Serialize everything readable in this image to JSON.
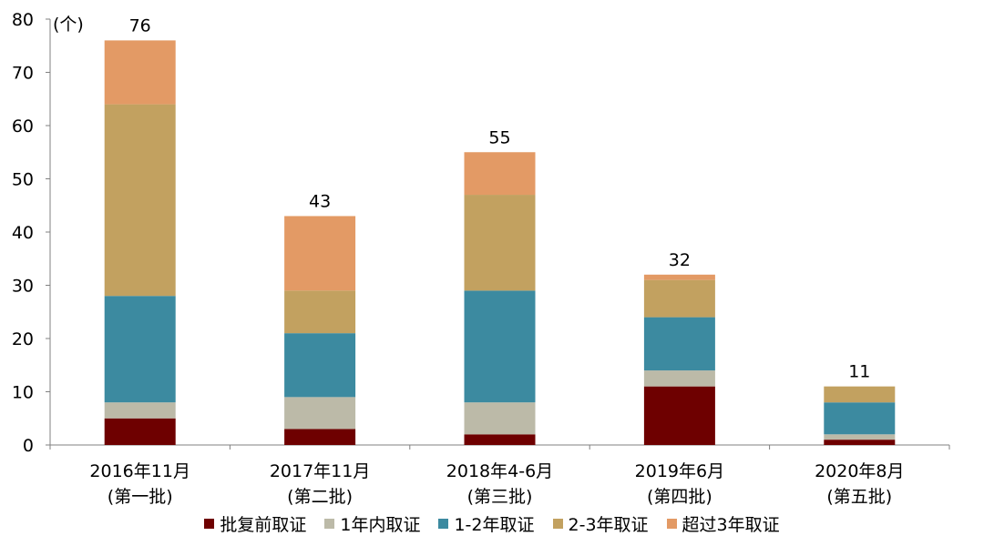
{
  "chart_data": {
    "type": "bar",
    "stacked": true,
    "unit_label": "(个)",
    "ylim": [
      0,
      80
    ],
    "yticks": [
      0,
      10,
      20,
      30,
      40,
      50,
      60,
      70,
      80
    ],
    "categories": [
      [
        "2016年11月",
        "(第一批)"
      ],
      [
        "2017年11月",
        "(第二批)"
      ],
      [
        "2018年4-6月",
        "(第三批)"
      ],
      [
        "2019年6月",
        "(第四批)"
      ],
      [
        "2020年8月",
        "(第五批)"
      ]
    ],
    "series": [
      {
        "name": "批复前取证",
        "color": "#6e0000",
        "values": [
          5,
          3,
          2,
          11,
          1
        ]
      },
      {
        "name": "1年内取证",
        "color": "#bcbaa8",
        "values": [
          3,
          6,
          6,
          3,
          1
        ]
      },
      {
        "name": "1-2年取证",
        "color": "#3c8aa0",
        "values": [
          20,
          12,
          21,
          10,
          6
        ]
      },
      {
        "name": "2-3年取证",
        "color": "#c2a160",
        "values": [
          36,
          8,
          18,
          7,
          3
        ]
      },
      {
        "name": "超过3年取证",
        "color": "#e39a65",
        "values": [
          12,
          14,
          8,
          1,
          0
        ]
      }
    ],
    "totals": [
      76,
      43,
      55,
      32,
      11
    ],
    "grid": false,
    "legend_position": "bottom"
  }
}
